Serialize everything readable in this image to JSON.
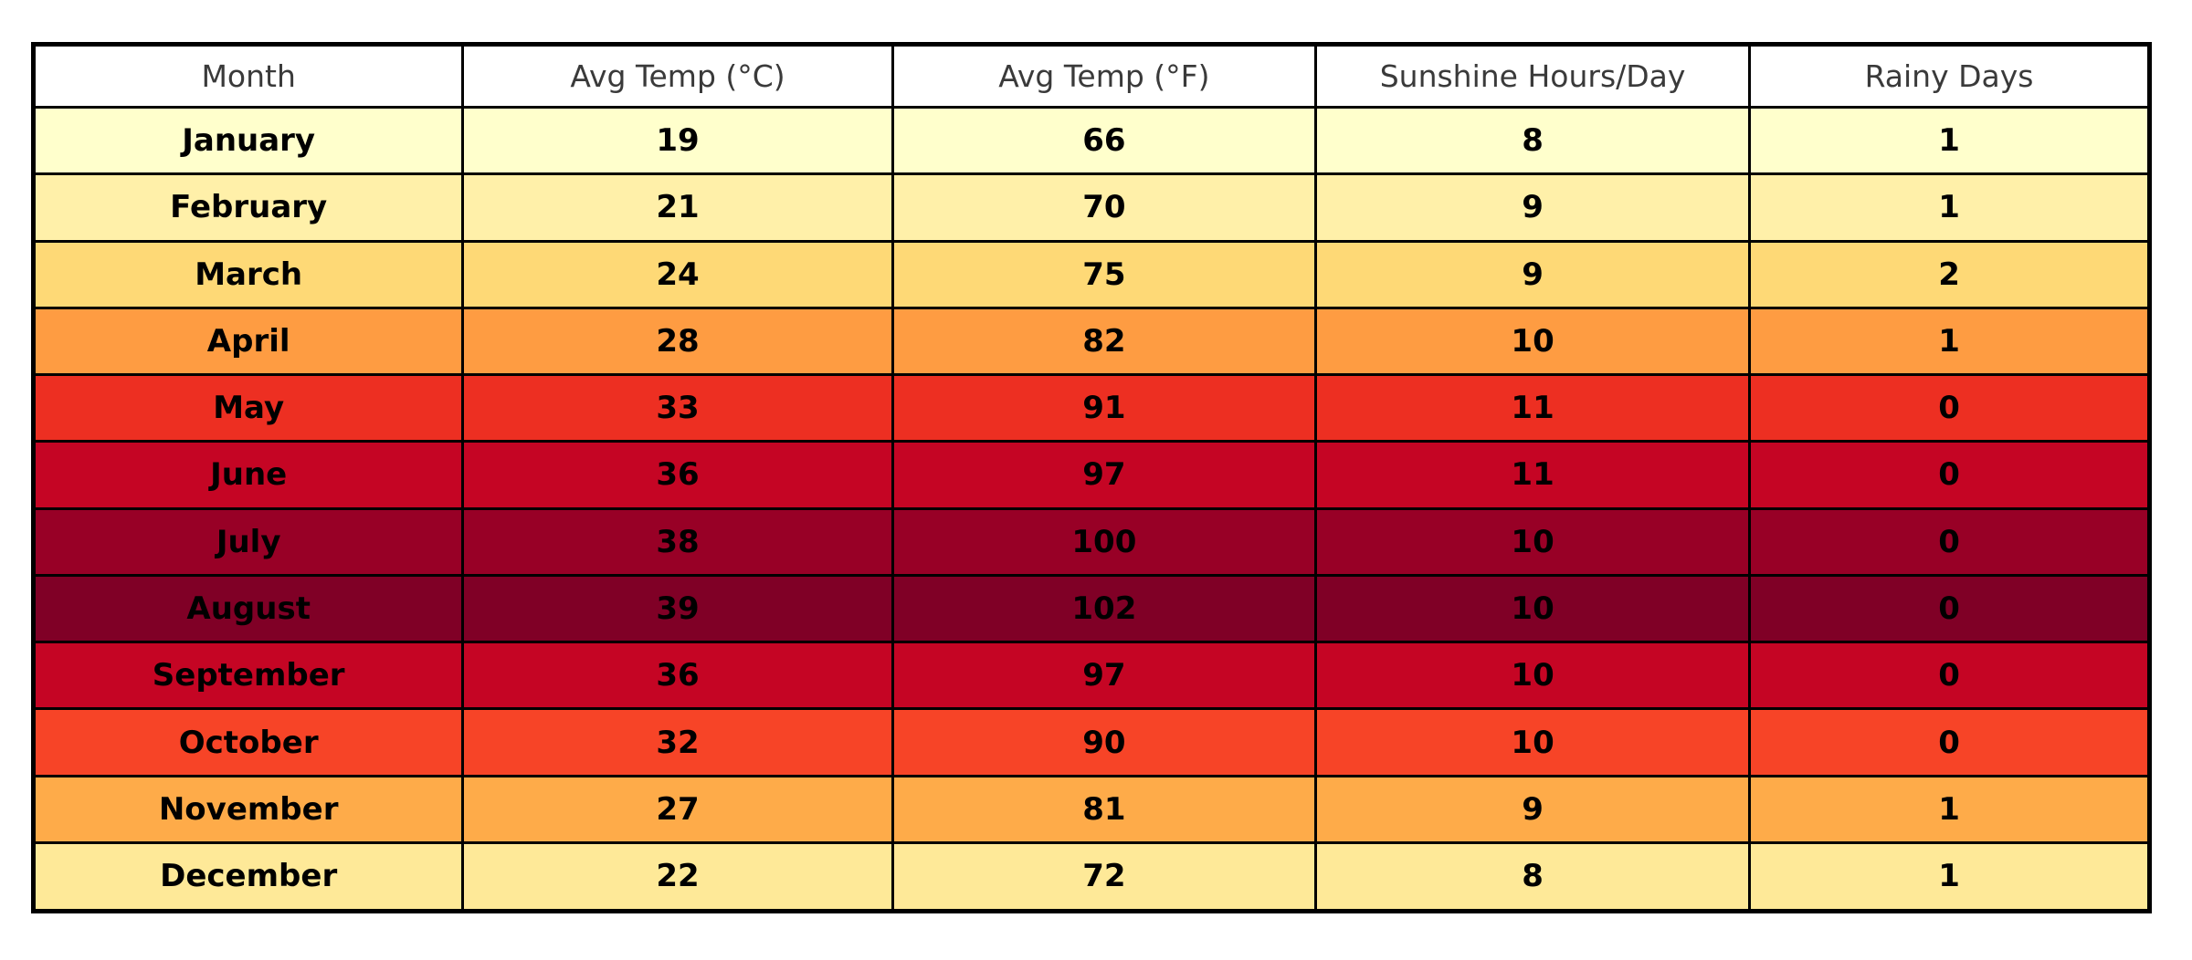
{
  "chart_data": {
    "type": "table",
    "title": "Monthly climate table (no visible title in image)",
    "columns": [
      "Month",
      "Avg Temp (°C)",
      "Avg Temp (°F)",
      "Sunshine Hours/Day",
      "Rainy Days"
    ],
    "rows": [
      {
        "month": "January",
        "temp_c": "19",
        "temp_f": "66",
        "sunshine": "8",
        "rainy": "1",
        "bg": "#FFFFCC"
      },
      {
        "month": "February",
        "temp_c": "21",
        "temp_f": "70",
        "sunshine": "9",
        "rainy": "1",
        "bg": "#FFF0A9"
      },
      {
        "month": "March",
        "temp_c": "24",
        "temp_f": "75",
        "sunshine": "9",
        "rainy": "2",
        "bg": "#FED976"
      },
      {
        "month": "April",
        "temp_c": "28",
        "temp_f": "82",
        "sunshine": "10",
        "rainy": "1",
        "bg": "#FE9C42"
      },
      {
        "month": "May",
        "temp_c": "33",
        "temp_f": "91",
        "sunshine": "11",
        "rainy": "0",
        "bg": "#ED2F22"
      },
      {
        "month": "June",
        "temp_c": "36",
        "temp_f": "97",
        "sunshine": "11",
        "rainy": "0",
        "bg": "#C50524"
      },
      {
        "month": "July",
        "temp_c": "38",
        "temp_f": "100",
        "sunshine": "10",
        "rainy": "0",
        "bg": "#980026"
      },
      {
        "month": "August",
        "temp_c": "39",
        "temp_f": "102",
        "sunshine": "10",
        "rainy": "0",
        "bg": "#800026"
      },
      {
        "month": "September",
        "temp_c": "36",
        "temp_f": "97",
        "sunshine": "10",
        "rainy": "0",
        "bg": "#C50524"
      },
      {
        "month": "October",
        "temp_c": "32",
        "temp_f": "90",
        "sunshine": "10",
        "rainy": "0",
        "bg": "#F74427"
      },
      {
        "month": "November",
        "temp_c": "27",
        "temp_f": "81",
        "sunshine": "9",
        "rainy": "1",
        "bg": "#FEAB49"
      },
      {
        "month": "December",
        "temp_c": "22",
        "temp_f": "72",
        "sunshine": "8",
        "rainy": "1",
        "bg": "#FEE998"
      }
    ],
    "layout": {
      "header_bg": "#FFFFFF",
      "header_text_color": "#3A3A3A",
      "cell_text_color": "#000000",
      "border_color": "#000000",
      "color_scale_note": "Row background follows YlOrRd heat scale of Avg Temp (°C), range 19–39"
    }
  }
}
